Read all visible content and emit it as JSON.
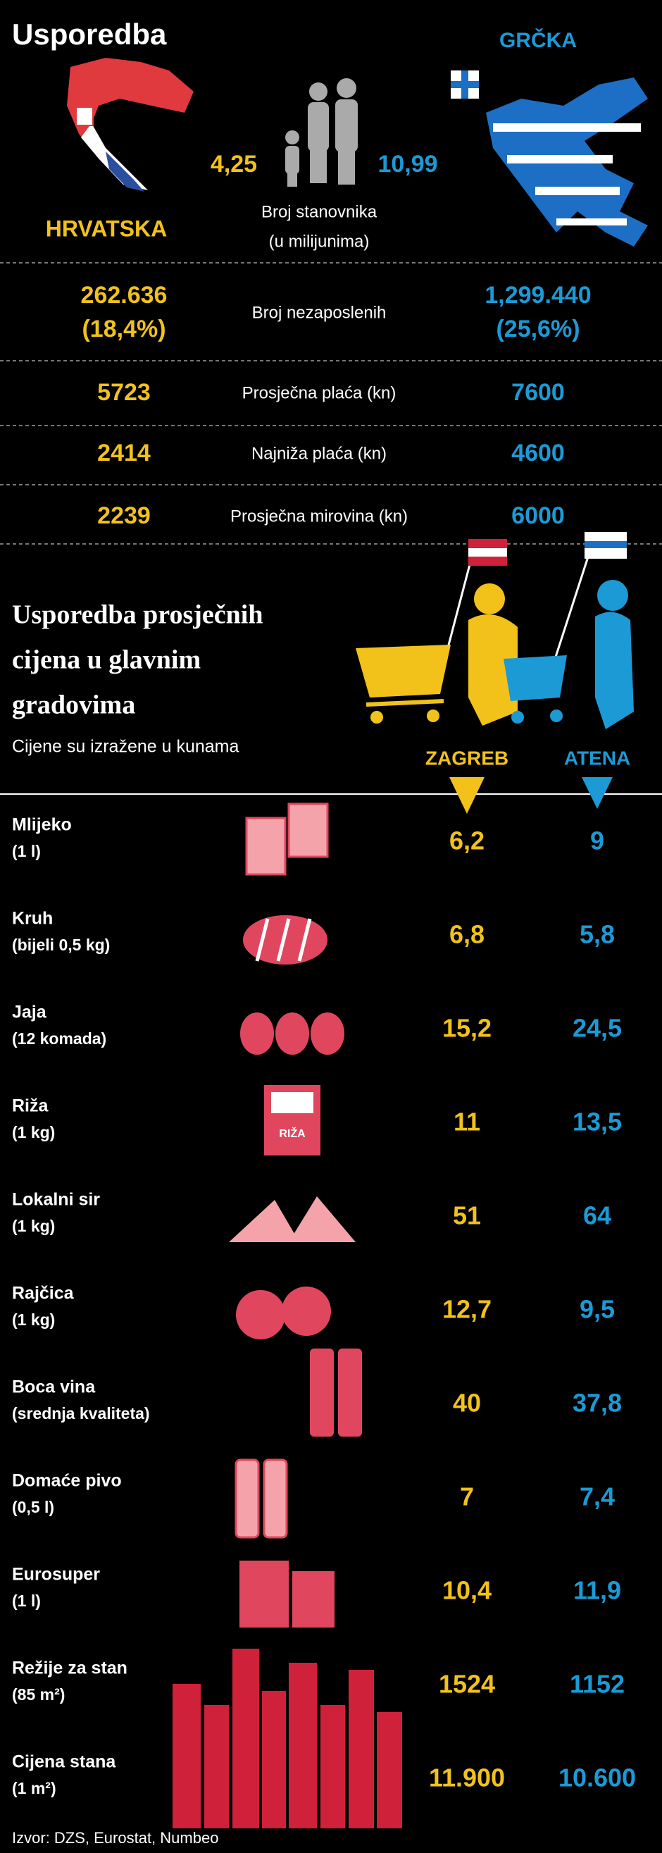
{
  "header": {
    "title": "Usporedba",
    "country_left": "HRVATSKA",
    "country_right": "GRČKA"
  },
  "population": {
    "left": "4,25",
    "right": "10,99",
    "label": [
      "Broj stanovnika",
      "(u milijunima)"
    ]
  },
  "stats": [
    {
      "left": [
        "262.636",
        "(18,4%)"
      ],
      "label": "Broj nezaposlenih",
      "right": [
        "1,299.440",
        "(25,6%)"
      ]
    },
    {
      "left": [
        "5723"
      ],
      "label": "Prosječna plaća (kn)",
      "right": [
        "7600"
      ]
    },
    {
      "left": [
        "2414"
      ],
      "label": "Najniža plaća (kn)",
      "right": [
        "4600"
      ]
    },
    {
      "left": [
        "2239"
      ],
      "label": "Prosječna mirovina (kn)",
      "right": [
        "6000"
      ]
    }
  ],
  "prices": {
    "title": [
      "Usporedba prosječnih",
      "cijena u glavnim",
      "gradovima"
    ],
    "subtitle": "Cijene su izražene u kunama",
    "columns": [
      "ZAGREB",
      "ATENA"
    ],
    "items": [
      {
        "label": [
          "Mlijeko",
          "(1 l)"
        ],
        "zagreb": "6,2",
        "atena": "9"
      },
      {
        "label": [
          "Kruh",
          "(bijeli 0,5 kg)"
        ],
        "zagreb": "6,8",
        "atena": "5,8"
      },
      {
        "label": [
          "Jaja",
          "(12 komada)"
        ],
        "zagreb": "15,2",
        "atena": "24,5"
      },
      {
        "label": [
          "Riža",
          "(1 kg)"
        ],
        "zagreb": "11",
        "atena": "13,5",
        "icon_label": "RIŽA"
      },
      {
        "label": [
          "Lokalni sir",
          "(1 kg)"
        ],
        "zagreb": "51",
        "atena": "64"
      },
      {
        "label": [
          "Rajčica",
          "(1 kg)"
        ],
        "zagreb": "12,7",
        "atena": "9,5"
      },
      {
        "label": [
          "Boca vina",
          "(srednja kvaliteta)"
        ],
        "zagreb": "40",
        "atena": "37,8"
      },
      {
        "label": [
          "Domaće pivo",
          "(0,5 l)"
        ],
        "zagreb": "7",
        "atena": "7,4"
      },
      {
        "label": [
          "Eurosuper",
          "(1 l)"
        ],
        "zagreb": "10,4",
        "atena": "11,9"
      },
      {
        "label": [
          "Režije za stan",
          "(85 m²)"
        ],
        "zagreb": "1524",
        "atena": "1152"
      },
      {
        "label": [
          "Cijena stana",
          "(1 m²)"
        ],
        "zagreb": "11.900",
        "atena": "10.600"
      }
    ]
  },
  "source": "Izvor: DZS, Eurostat, Numbeo"
}
